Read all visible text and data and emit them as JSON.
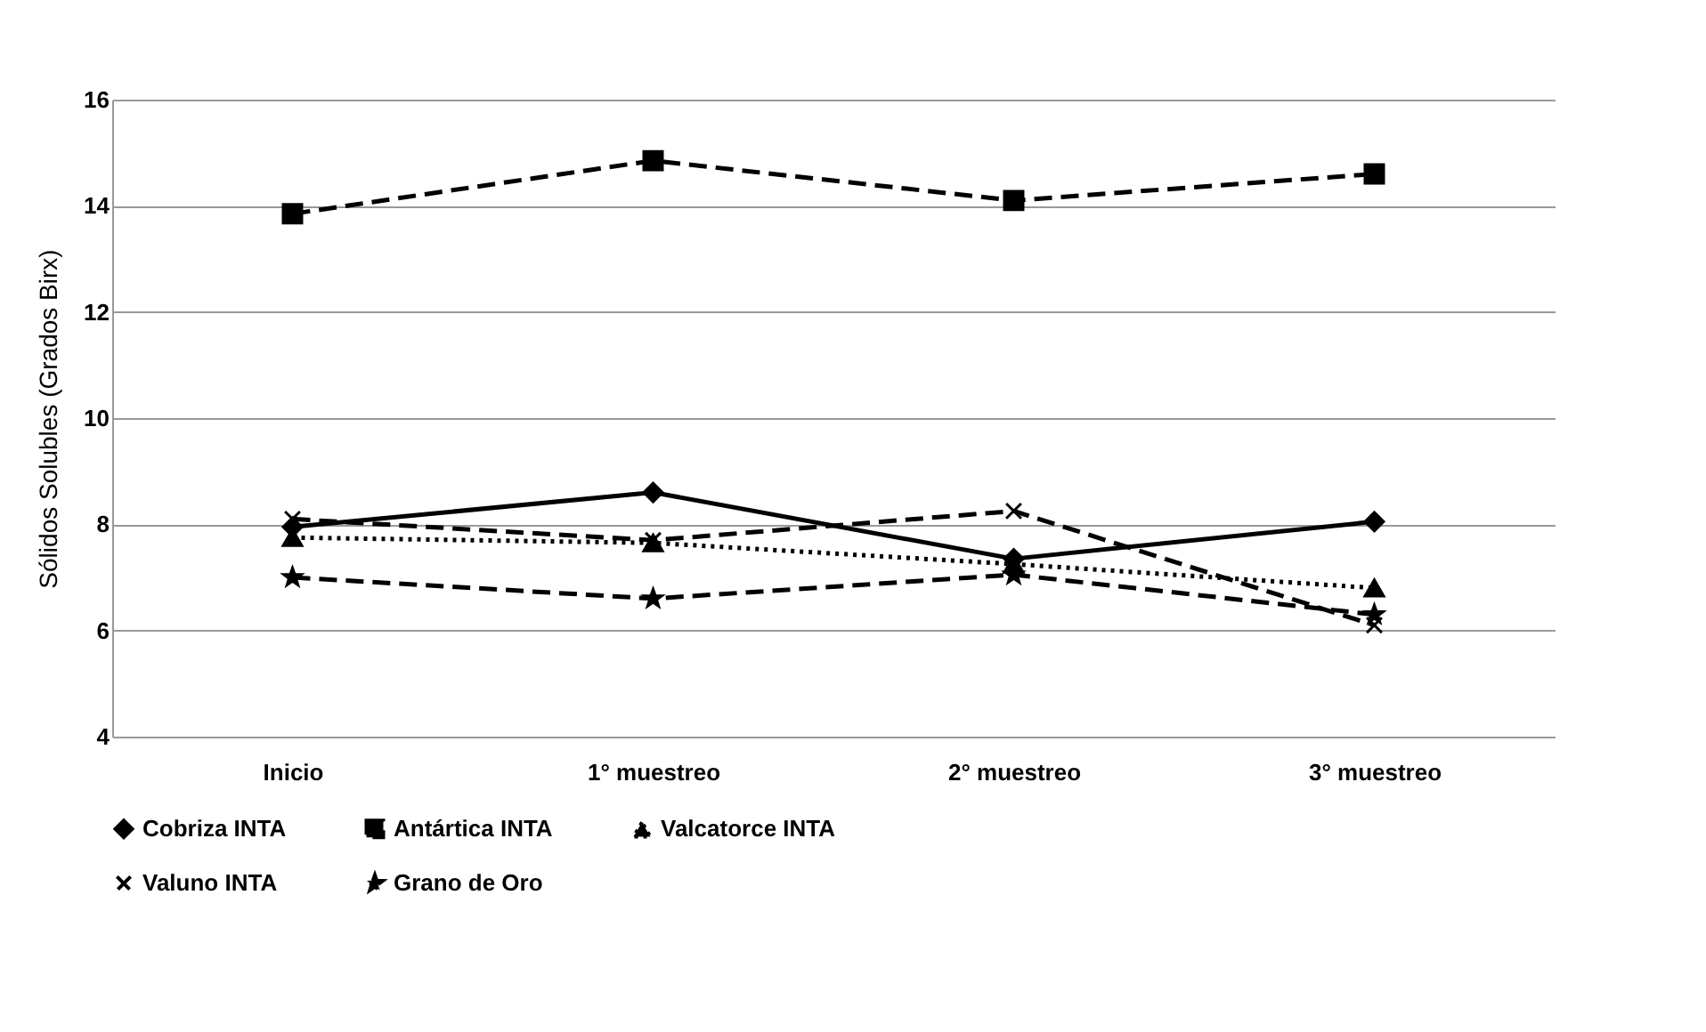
{
  "chart_data": {
    "type": "line",
    "ylabel": "Sólidos Solubles (Grados Birx)",
    "categories": [
      "Inicio",
      "1° muestreo",
      "2° muestreo",
      "3° muestreo"
    ],
    "series": [
      {
        "name": "Cobriza INTA",
        "color": "#000000",
        "marker": "diamond",
        "line_style": "solid",
        "values": [
          7.95,
          8.6,
          7.35,
          8.05
        ]
      },
      {
        "name": "Antártica INTA",
        "color": "#000000",
        "marker": "square",
        "line_style": "dashed",
        "values": [
          13.85,
          14.85,
          14.1,
          14.6
        ]
      },
      {
        "name": "Valcatorce INTA",
        "color": "#000000",
        "marker": "triangle",
        "line_style": "dotted",
        "values": [
          7.75,
          7.65,
          7.25,
          6.8
        ]
      },
      {
        "name": "Valuno INTA",
        "color": "#000000",
        "marker": "cross",
        "line_style": "dashed",
        "values": [
          8.1,
          7.7,
          8.25,
          6.1
        ]
      },
      {
        "name": "Grano de Oro",
        "color": "#000000",
        "marker": "star",
        "line_style": "dashed",
        "values": [
          7.0,
          6.6,
          7.05,
          6.3
        ]
      }
    ],
    "ylim": [
      4,
      16
    ],
    "yticks": [
      4,
      6,
      8,
      10,
      12,
      14,
      16
    ],
    "grid": "y",
    "legend": "bottom"
  }
}
